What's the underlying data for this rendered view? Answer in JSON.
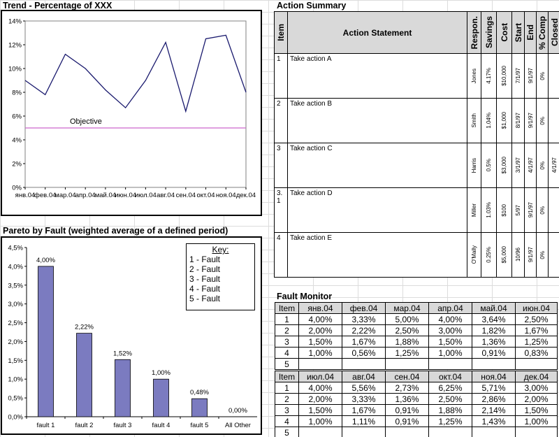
{
  "trend": {
    "title": "Trend  - Percentage of XXX",
    "objective_label": "Objective"
  },
  "pareto": {
    "title": "Pareto by Fault (weighted average of a defined period)",
    "key_title": "Key:",
    "key_items": [
      "1 - Fault",
      "2 - Fault",
      "3 - Fault",
      "4 - Fault",
      "5 - Fault"
    ]
  },
  "chart_data": [
    {
      "type": "line",
      "title": "Trend  - Percentage of XXX",
      "x": [
        "янв.04",
        "фев.04",
        "мар.04",
        "апр.04",
        "май.04",
        "июн.04",
        "июл.04",
        "авг.04",
        "сен.04",
        "окт.04",
        "ноя.04",
        "дек.04"
      ],
      "series": [
        {
          "values": [
            9.0,
            7.8,
            11.2,
            10.0,
            8.2,
            6.7,
            9.0,
            12.2,
            6.4,
            12.5,
            12.8,
            8.0
          ]
        },
        {
          "name": "Objective",
          "values": [
            5,
            5,
            5,
            5,
            5,
            5,
            5,
            5,
            5,
            5,
            5,
            5
          ]
        }
      ],
      "ylim": [
        0,
        14
      ],
      "yticks": [
        "0%",
        "2%",
        "4%",
        "6%",
        "8%",
        "10%",
        "12%",
        "14%"
      ],
      "grid": false,
      "colors": {
        "line": "#1a1a6e",
        "objective": "#cc66cc"
      }
    },
    {
      "type": "bar",
      "title": "Pareto by Fault (weighted average of a defined period)",
      "categories": [
        "fault 1",
        "fault 2",
        "fault 3",
        "fault 4",
        "fault 5",
        "All Other"
      ],
      "values": [
        4.0,
        2.22,
        1.52,
        1.0,
        0.48,
        0.0
      ],
      "data_labels": [
        "4,00%",
        "2,22%",
        "1,52%",
        "1,00%",
        "0,48%",
        "0,00%"
      ],
      "ylim": [
        0,
        4.5
      ],
      "yticks": [
        "0,0%",
        "0,5%",
        "1,0%",
        "1,5%",
        "2,0%",
        "2,5%",
        "3,0%",
        "3,5%",
        "4,0%",
        "4,5%"
      ],
      "legend": "top-right",
      "colors": {
        "bar": "#7b7bc0"
      }
    }
  ],
  "action_summary": {
    "title": "Action Summary",
    "headers": {
      "item": "Item",
      "statement": "Action Statement",
      "respon": "Respon.",
      "savings": "Savings",
      "cost": "Cost",
      "start": "Start",
      "end": "End",
      "comp": "% Comp",
      "closed": "Closed"
    },
    "rows": [
      {
        "item": "1",
        "statement": "Take action A",
        "respon": "Jones",
        "savings": "4.17%",
        "cost": "$10,000",
        "start": "7/1/97",
        "end": "9/1/97",
        "comp": "0%",
        "closed": ""
      },
      {
        "item": "2",
        "statement": "Take action B",
        "respon": "Smith",
        "savings": "1.04%",
        "cost": "$1,000",
        "start": "8/1/97",
        "end": "9/1/97",
        "comp": "0%",
        "closed": ""
      },
      {
        "item": "3",
        "statement": "Take action C",
        "respon": "Harris",
        "savings": "0.5%",
        "cost": "$3,000",
        "start": "3/1/97",
        "end": "4/1/97",
        "comp": "0%",
        "closed": "4/1/97"
      },
      {
        "item": "3.\n1",
        "statement": "Take action D",
        "respon": "Miller",
        "savings": "1.03%",
        "cost": "$100",
        "start": "5/97",
        "end": "9/1/97",
        "comp": "0%",
        "closed": ""
      },
      {
        "item": "4",
        "statement": "Take action E",
        "respon": "O'Mally",
        "savings": "0.25%",
        "cost": "$5,000",
        "start": "10/96",
        "end": "9/1/97",
        "comp": "0%",
        "closed": ""
      }
    ]
  },
  "fault_monitor": {
    "title": "Fault Monitor",
    "blocks": [
      {
        "headers": [
          "Item",
          "янв.04",
          "фев.04",
          "мар.04",
          "апр.04",
          "май.04",
          "июн.04"
        ],
        "rows": [
          [
            "1",
            "4,00%",
            "3,33%",
            "5,00%",
            "4,00%",
            "3,64%",
            "2,50%"
          ],
          [
            "2",
            "2,00%",
            "2,22%",
            "2,50%",
            "3,00%",
            "1,82%",
            "1,67%"
          ],
          [
            "3",
            "1,50%",
            "1,67%",
            "1,88%",
            "1,50%",
            "1,36%",
            "1,25%"
          ],
          [
            "4",
            "1,00%",
            "0,56%",
            "1,25%",
            "1,00%",
            "0,91%",
            "0,83%"
          ],
          [
            "5",
            "",
            "",
            "",
            "",
            "",
            ""
          ]
        ]
      },
      {
        "headers": [
          "Item",
          "июл.04",
          "авг.04",
          "сен.04",
          "окт.04",
          "ноя.04",
          "дек.04"
        ],
        "rows": [
          [
            "1",
            "4,00%",
            "5,56%",
            "2,73%",
            "6,25%",
            "5,71%",
            "3,00%"
          ],
          [
            "2",
            "2,00%",
            "3,33%",
            "1,36%",
            "2,50%",
            "2,86%",
            "2,00%"
          ],
          [
            "3",
            "1,50%",
            "1,67%",
            "0,91%",
            "1,88%",
            "2,14%",
            "1,50%"
          ],
          [
            "4",
            "1,00%",
            "1,11%",
            "0,91%",
            "1,25%",
            "1,43%",
            "1,00%"
          ],
          [
            "5",
            "",
            "",
            "",
            "",
            "",
            ""
          ]
        ]
      }
    ]
  }
}
